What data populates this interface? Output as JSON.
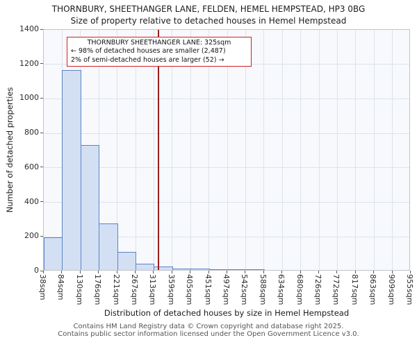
{
  "chart_data": {
    "type": "bar",
    "title": "THORNBURY, SHEETHANGER LANE, FELDEN, HEMEL HEMPSTEAD, HP3 0BG",
    "subtitle": "Size of property relative to detached houses in Hemel Hempstead",
    "xlabel": "Distribution of detached houses by size in Hemel Hempstead",
    "ylabel": "Number of detached properties",
    "bin_edges_sqm": [
      38,
      84,
      130,
      176,
      221,
      267,
      313,
      359,
      405,
      451,
      497,
      542,
      588,
      634,
      680,
      726,
      772,
      817,
      863,
      909,
      955
    ],
    "tick_labels": [
      "38sqm",
      "84sqm",
      "130sqm",
      "176sqm",
      "221sqm",
      "267sqm",
      "313sqm",
      "359sqm",
      "405sqm",
      "451sqm",
      "497sqm",
      "542sqm",
      "588sqm",
      "634sqm",
      "680sqm",
      "726sqm",
      "772sqm",
      "817sqm",
      "863sqm",
      "909sqm",
      "955sqm"
    ],
    "values": [
      190,
      1160,
      725,
      270,
      105,
      35,
      20,
      10,
      8,
      6,
      5,
      5,
      0,
      0,
      0,
      0,
      0,
      0,
      0,
      0
    ],
    "ylim": [
      0,
      1400
    ],
    "yticks": [
      0,
      200,
      400,
      600,
      800,
      1000,
      1200,
      1400
    ],
    "grid": true,
    "legend": "none",
    "bar_fill": "#d3e0f4",
    "bar_edge": "#5b84c4",
    "marker": {
      "value_sqm": 325,
      "color": "#9b1c1c"
    }
  },
  "annotation": {
    "line1": "THORNBURY SHEETHANGER LANE: 325sqm",
    "line2": "← 98% of detached houses are smaller (2,487)",
    "line3": "2% of semi-detached houses are larger (52) →",
    "border_color": "#cc2222"
  },
  "footer": {
    "line1": "Contains HM Land Registry data © Crown copyright and database right 2025.",
    "line2": "Contains public sector information licensed under the Open Government Licence v3.0."
  }
}
